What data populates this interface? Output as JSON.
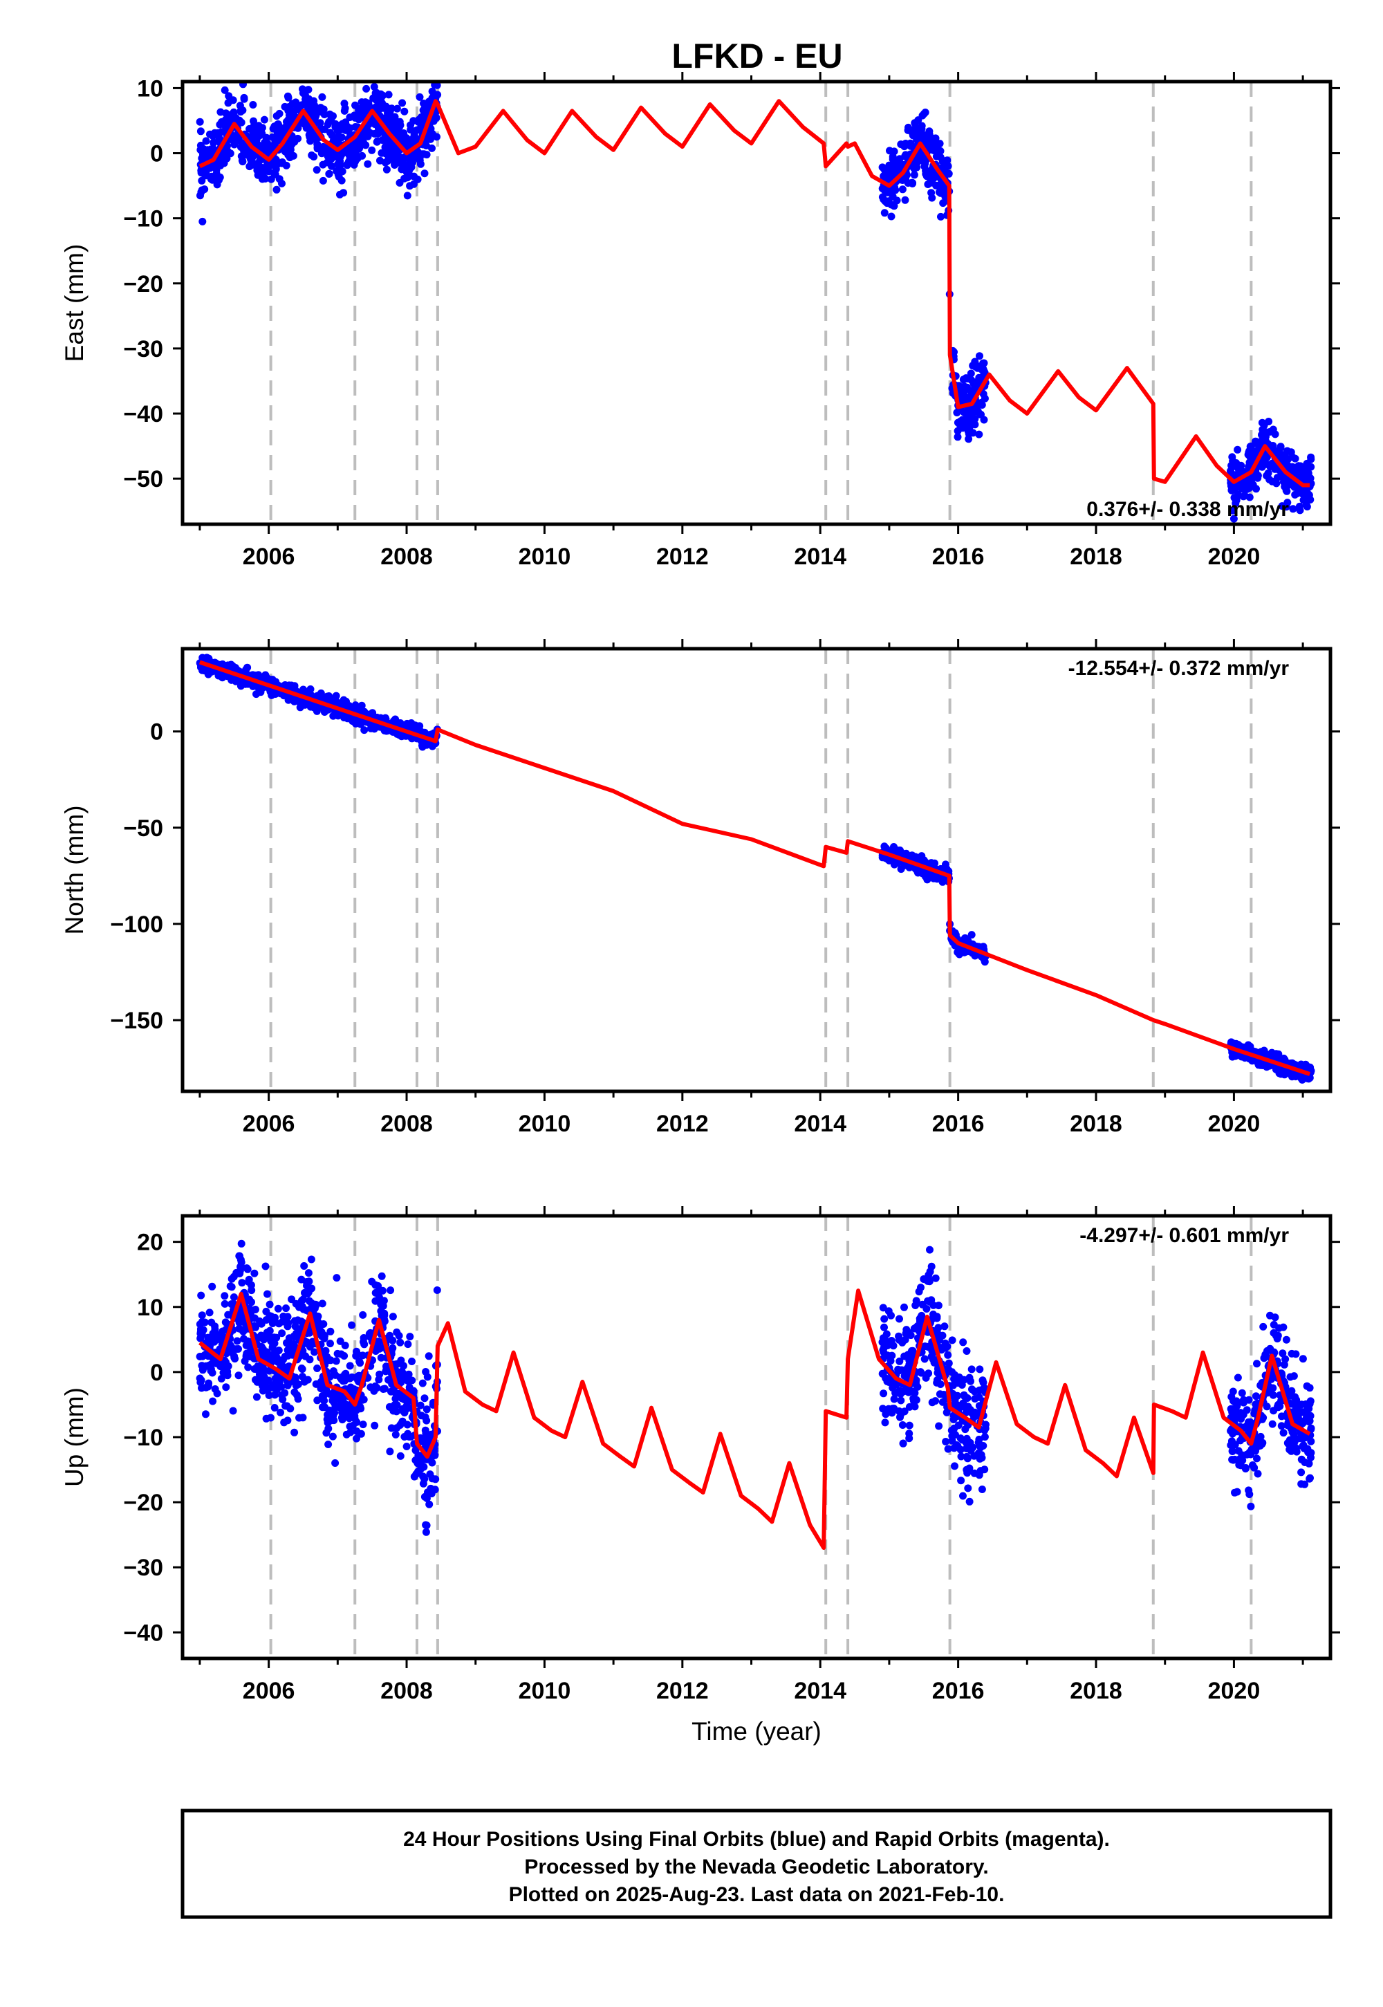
{
  "title": "LFKD - EU",
  "footer": {
    "lines": [
      "24 Hour Positions Using Final Orbits (blue) and Rapid Orbits (magenta).",
      "Processed by the Nevada Geodetic Laboratory.",
      "Plotted on 2025-Aug-23. Last data on 2021-Feb-10."
    ]
  },
  "colors": {
    "data_points": "#0000ff",
    "model_line": "#ff0000",
    "event_lines": "#bdbdbd",
    "frame": "#000000"
  },
  "chart_data": [
    {
      "type": "scatter",
      "panel": "east",
      "ylabel": "East (mm)",
      "xlabel": "",
      "xlim": [
        2004.75,
        2021.4
      ],
      "ylim": [
        -57,
        11
      ],
      "x_ticks": [
        "2006",
        "2008",
        "2010",
        "2012",
        "2014",
        "2016",
        "2018",
        "2020"
      ],
      "y_ticks": [
        "10",
        "0",
        "−10",
        "−20",
        "−30",
        "−40",
        "−50"
      ],
      "y_tick_values": [
        10,
        0,
        -10,
        -20,
        -30,
        -40,
        -50
      ],
      "rate_label": "0.376+/- 0.338 mm/yr",
      "rate_position": "bottom-right",
      "event_lines_x": [
        2006.03,
        2007.25,
        2008.15,
        2008.45,
        2014.08,
        2014.4,
        2015.88,
        2018.83,
        2020.25
      ],
      "model_line": [
        [
          2005.0,
          -2
        ],
        [
          2005.2,
          -1
        ],
        [
          2005.5,
          4.5
        ],
        [
          2005.75,
          1
        ],
        [
          2006.0,
          -1
        ],
        [
          2006.2,
          1.5
        ],
        [
          2006.5,
          6.5
        ],
        [
          2006.8,
          2
        ],
        [
          2007.0,
          0.5
        ],
        [
          2007.25,
          2.5
        ],
        [
          2007.5,
          6.5
        ],
        [
          2007.75,
          3
        ],
        [
          2008.0,
          0
        ],
        [
          2008.2,
          1.5
        ],
        [
          2008.42,
          8
        ],
        [
          2008.45,
          7.5
        ],
        [
          2008.75,
          0
        ],
        [
          2009.0,
          1
        ],
        [
          2009.4,
          6.5
        ],
        [
          2009.75,
          2
        ],
        [
          2010.0,
          0
        ],
        [
          2010.4,
          6.5
        ],
        [
          2010.75,
          2.5
        ],
        [
          2011.0,
          0.5
        ],
        [
          2011.4,
          7
        ],
        [
          2011.75,
          3
        ],
        [
          2012.0,
          1
        ],
        [
          2012.4,
          7.5
        ],
        [
          2012.75,
          3.5
        ],
        [
          2013.0,
          1.5
        ],
        [
          2013.4,
          8
        ],
        [
          2013.75,
          4
        ],
        [
          2014.05,
          1.5
        ],
        [
          2014.08,
          -2
        ],
        [
          2014.38,
          1.5
        ],
        [
          2014.4,
          1
        ],
        [
          2014.5,
          1.5
        ],
        [
          2014.75,
          -3.5
        ],
        [
          2015.0,
          -5
        ],
        [
          2015.2,
          -3
        ],
        [
          2015.45,
          1.5
        ],
        [
          2015.7,
          -2.5
        ],
        [
          2015.87,
          -5
        ],
        [
          2015.88,
          -31
        ],
        [
          2016.0,
          -39
        ],
        [
          2016.2,
          -38.5
        ],
        [
          2016.45,
          -34
        ],
        [
          2016.75,
          -38
        ],
        [
          2017.0,
          -40
        ],
        [
          2017.45,
          -33.5
        ],
        [
          2017.75,
          -37.5
        ],
        [
          2018.0,
          -39.5
        ],
        [
          2018.45,
          -33
        ],
        [
          2018.83,
          -38.5
        ],
        [
          2018.84,
          -50
        ],
        [
          2019.0,
          -50.5
        ],
        [
          2019.45,
          -43.5
        ],
        [
          2019.75,
          -48
        ],
        [
          2020.0,
          -50.5
        ],
        [
          2020.25,
          -49
        ],
        [
          2020.45,
          -45
        ],
        [
          2020.75,
          -49
        ],
        [
          2021.0,
          -51
        ],
        [
          2021.1,
          -51
        ]
      ],
      "point_clusters": [
        {
          "x_range": [
            2005.0,
            2008.45
          ],
          "scatter_mm": 2.5
        },
        {
          "x_range": [
            2014.9,
            2015.88
          ],
          "scatter_mm": 2.5
        },
        {
          "x_range": [
            2015.9,
            2016.4
          ],
          "scatter_mm": 2.5
        },
        {
          "x_range": [
            2019.95,
            2021.12
          ],
          "scatter_mm": 2.0
        }
      ]
    },
    {
      "type": "scatter",
      "panel": "north",
      "ylabel": "North (mm)",
      "xlabel": "",
      "xlim": [
        2004.75,
        2021.4
      ],
      "ylim": [
        -187,
        43
      ],
      "x_ticks": [
        "2006",
        "2008",
        "2010",
        "2012",
        "2014",
        "2016",
        "2018",
        "2020"
      ],
      "y_ticks": [
        "0",
        "−50",
        "−100",
        "−150"
      ],
      "y_tick_values": [
        0,
        -50,
        -100,
        -150
      ],
      "rate_label": "-12.554+/- 0.372 mm/yr",
      "rate_position": "top-right",
      "event_lines_x": [
        2006.03,
        2007.25,
        2008.15,
        2008.45,
        2014.08,
        2014.4,
        2015.88,
        2018.83,
        2020.25
      ],
      "model_line": [
        [
          2005.0,
          36
        ],
        [
          2006.0,
          24
        ],
        [
          2007.0,
          12
        ],
        [
          2008.0,
          0
        ],
        [
          2008.42,
          -5
        ],
        [
          2008.45,
          1
        ],
        [
          2009.0,
          -7
        ],
        [
          2010.0,
          -19
        ],
        [
          2011.0,
          -31
        ],
        [
          2012.0,
          -48
        ],
        [
          2013.0,
          -56
        ],
        [
          2014.05,
          -70
        ],
        [
          2014.08,
          -60
        ],
        [
          2014.38,
          -63
        ],
        [
          2014.4,
          -57
        ],
        [
          2015.0,
          -64
        ],
        [
          2015.87,
          -75
        ],
        [
          2015.88,
          -106
        ],
        [
          2016.0,
          -110
        ],
        [
          2017.0,
          -124
        ],
        [
          2018.0,
          -137
        ],
        [
          2018.83,
          -150
        ],
        [
          2019.0,
          -152
        ],
        [
          2020.0,
          -165
        ],
        [
          2021.1,
          -178
        ]
      ],
      "point_clusters": [
        {
          "x_range": [
            2005.0,
            2008.45
          ],
          "scatter_mm": 2.0
        },
        {
          "x_range": [
            2014.9,
            2015.88
          ],
          "scatter_mm": 2.0
        },
        {
          "x_range": [
            2015.9,
            2016.4
          ],
          "scatter_mm": 2.0
        },
        {
          "x_range": [
            2019.95,
            2021.12
          ],
          "scatter_mm": 2.0
        }
      ]
    },
    {
      "type": "scatter",
      "panel": "up",
      "ylabel": "Up (mm)",
      "xlabel": "Time (year)",
      "xlim": [
        2004.75,
        2021.4
      ],
      "ylim": [
        -44,
        24
      ],
      "x_ticks": [
        "2006",
        "2008",
        "2010",
        "2012",
        "2014",
        "2016",
        "2018",
        "2020"
      ],
      "y_ticks": [
        "20",
        "10",
        "0",
        "−10",
        "−20",
        "−30",
        "−40"
      ],
      "y_tick_values": [
        20,
        10,
        0,
        -10,
        -20,
        -30,
        -40
      ],
      "rate_label": "-4.297+/- 0.601 mm/yr",
      "rate_position": "top-right",
      "event_lines_x": [
        2006.03,
        2007.25,
        2008.15,
        2008.45,
        2014.08,
        2014.4,
        2015.88,
        2018.83,
        2020.25
      ],
      "model_line": [
        [
          2005.0,
          4.5
        ],
        [
          2005.3,
          2
        ],
        [
          2005.6,
          12
        ],
        [
          2005.85,
          2
        ],
        [
          2006.1,
          0.5
        ],
        [
          2006.3,
          -1
        ],
        [
          2006.6,
          9
        ],
        [
          2006.85,
          -2
        ],
        [
          2007.1,
          -3
        ],
        [
          2007.25,
          -5
        ],
        [
          2007.35,
          -2
        ],
        [
          2007.6,
          8
        ],
        [
          2007.85,
          -2
        ],
        [
          2008.1,
          -4
        ],
        [
          2008.15,
          -11
        ],
        [
          2008.3,
          -13
        ],
        [
          2008.42,
          -10
        ],
        [
          2008.45,
          4
        ],
        [
          2008.6,
          7.5
        ],
        [
          2008.85,
          -3
        ],
        [
          2009.1,
          -5
        ],
        [
          2009.3,
          -6
        ],
        [
          2009.55,
          3
        ],
        [
          2009.85,
          -7
        ],
        [
          2010.1,
          -9
        ],
        [
          2010.3,
          -10
        ],
        [
          2010.55,
          -1.5
        ],
        [
          2010.85,
          -11
        ],
        [
          2011.1,
          -13
        ],
        [
          2011.3,
          -14.5
        ],
        [
          2011.55,
          -5.5
        ],
        [
          2011.85,
          -15
        ],
        [
          2012.1,
          -17
        ],
        [
          2012.3,
          -18.5
        ],
        [
          2012.55,
          -9.5
        ],
        [
          2012.85,
          -19
        ],
        [
          2013.1,
          -21
        ],
        [
          2013.3,
          -23
        ],
        [
          2013.55,
          -14
        ],
        [
          2013.85,
          -23.5
        ],
        [
          2014.05,
          -27
        ],
        [
          2014.08,
          -6
        ],
        [
          2014.38,
          -7
        ],
        [
          2014.4,
          2
        ],
        [
          2014.55,
          12.5
        ],
        [
          2014.85,
          2
        ],
        [
          2015.1,
          -1
        ],
        [
          2015.3,
          -2
        ],
        [
          2015.55,
          8.5
        ],
        [
          2015.85,
          -2.5
        ],
        [
          2015.88,
          -5.5
        ],
        [
          2016.1,
          -7
        ],
        [
          2016.3,
          -8.5
        ],
        [
          2016.55,
          1.5
        ],
        [
          2016.85,
          -8
        ],
        [
          2017.1,
          -10
        ],
        [
          2017.3,
          -11
        ],
        [
          2017.55,
          -2
        ],
        [
          2017.85,
          -12
        ],
        [
          2018.1,
          -14
        ],
        [
          2018.3,
          -16
        ],
        [
          2018.55,
          -7
        ],
        [
          2018.83,
          -15.5
        ],
        [
          2018.84,
          -5
        ],
        [
          2019.1,
          -6
        ],
        [
          2019.3,
          -7
        ],
        [
          2019.55,
          3
        ],
        [
          2019.85,
          -7
        ],
        [
          2020.1,
          -9
        ],
        [
          2020.25,
          -11
        ],
        [
          2020.35,
          -7
        ],
        [
          2020.55,
          2.5
        ],
        [
          2020.85,
          -8
        ],
        [
          2021.1,
          -9.5
        ]
      ],
      "point_clusters": [
        {
          "x_range": [
            2005.0,
            2008.1
          ],
          "scatter_mm": 4.5
        },
        {
          "x_range": [
            2008.1,
            2008.45
          ],
          "scatter_mm": 5.0
        },
        {
          "x_range": [
            2014.9,
            2015.88
          ],
          "scatter_mm": 4.5
        },
        {
          "x_range": [
            2015.9,
            2016.4
          ],
          "scatter_mm": 4.5
        },
        {
          "x_range": [
            2019.95,
            2021.12
          ],
          "scatter_mm": 4.0
        }
      ]
    }
  ]
}
